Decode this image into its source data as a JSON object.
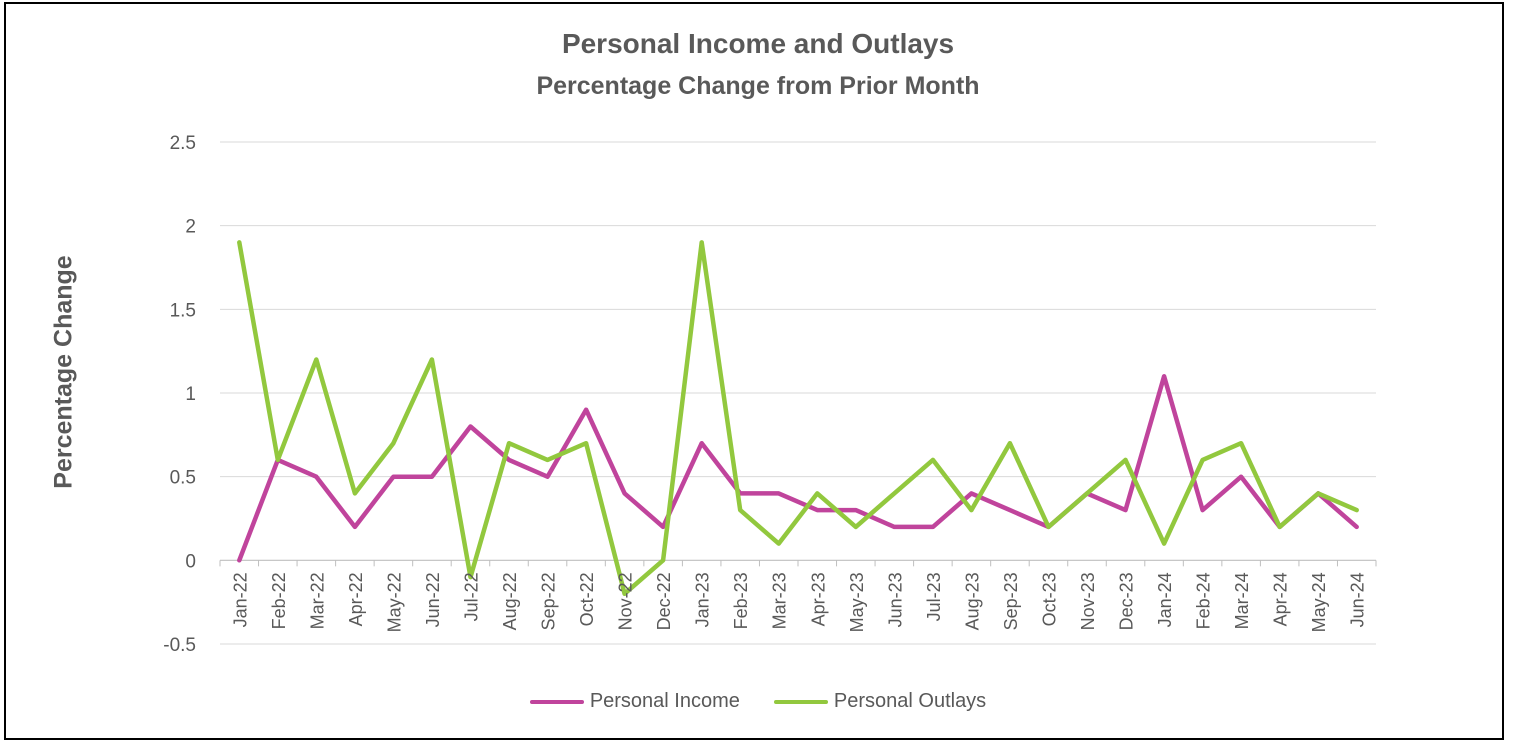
{
  "chart_data": {
    "type": "line",
    "title": "Personal Income and Outlays",
    "subtitle": "Percentage Change from Prior Month",
    "xlabel": "",
    "ylabel": "Percentage Change",
    "ylim": [
      -0.5,
      2.5
    ],
    "yticks": [
      "2.5",
      "2",
      "1.5",
      "1",
      "0.5",
      "0",
      "-0.5"
    ],
    "ytick_values": [
      2.5,
      2,
      1.5,
      1,
      0.5,
      0,
      -0.5
    ],
    "grid": true,
    "legend_position": "bottom",
    "categories": [
      "Jan-22",
      "Feb-22",
      "Mar-22",
      "Apr-22",
      "May-22",
      "Jun-22",
      "Jul-22",
      "Aug-22",
      "Sep-22",
      "Oct-22",
      "Nov-22",
      "Dec-22",
      "Jan-23",
      "Feb-23",
      "Mar-23",
      "Apr-23",
      "May-23",
      "Jun-23",
      "Jul-23",
      "Aug-23",
      "Sep-23",
      "Oct-23",
      "Nov-23",
      "Dec-23",
      "Jan-24",
      "Feb-24",
      "Mar-24",
      "Apr-24",
      "May-24",
      "Jun-24"
    ],
    "series": [
      {
        "name": "Personal Income",
        "color": "#C0449C",
        "values": [
          0,
          0.6,
          0.5,
          0.2,
          0.5,
          0.5,
          0.8,
          0.6,
          0.5,
          0.9,
          0.4,
          0.2,
          0.7,
          0.4,
          0.4,
          0.3,
          0.3,
          0.2,
          0.2,
          0.4,
          0.3,
          0.2,
          0.4,
          0.3,
          1.1,
          0.3,
          0.5,
          0.2,
          0.4,
          0.2
        ]
      },
      {
        "name": "Personal Outlays",
        "color": "#92C83E",
        "values": [
          1.9,
          0.6,
          1.2,
          0.4,
          0.7,
          1.2,
          -0.1,
          0.7,
          0.6,
          0.7,
          -0.2,
          0,
          1.9,
          0.3,
          0.1,
          0.4,
          0.2,
          0.4,
          0.6,
          0.3,
          0.7,
          0.2,
          0.4,
          0.6,
          0.1,
          0.6,
          0.7,
          0.2,
          0.4,
          0.3
        ]
      }
    ]
  }
}
